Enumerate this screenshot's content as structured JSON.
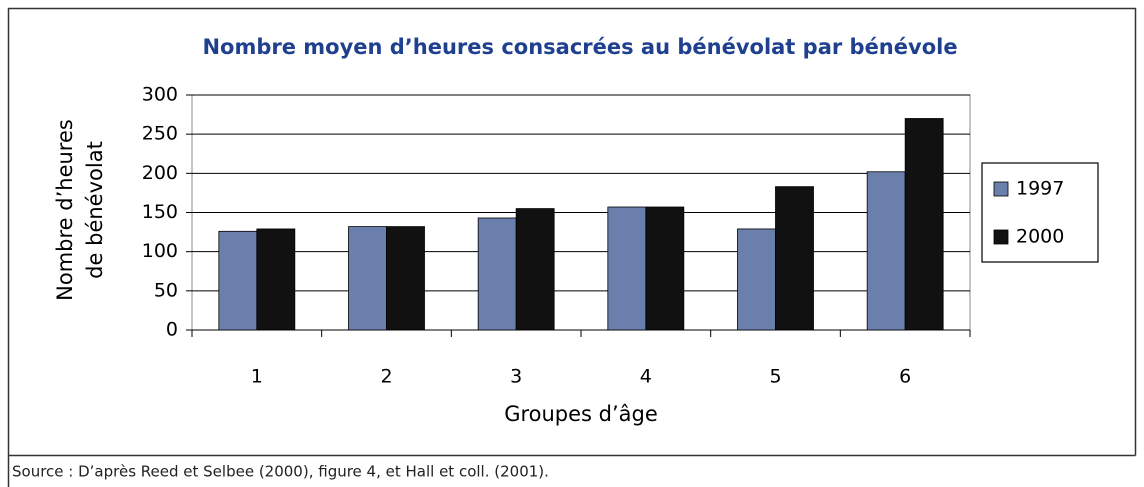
{
  "chart_data": {
    "type": "bar",
    "title": "Nombre moyen d’heures consacrées au bénévolat par bénévole",
    "ylabel": [
      "Nombre d’heures",
      "de bénévolat"
    ],
    "xlabel": "Groupes d’âge",
    "categories": [
      "1",
      "2",
      "3",
      "4",
      "5",
      "6"
    ],
    "series": [
      {
        "name": "1997",
        "color": "#6b7fad",
        "values": [
          126,
          132,
          143,
          157,
          129,
          202
        ]
      },
      {
        "name": "2000",
        "color": "#111111",
        "values": [
          129,
          132,
          155,
          157,
          183,
          270
        ]
      }
    ],
    "ylim": [
      0,
      300
    ],
    "yticks": [
      0,
      50,
      100,
      150,
      200,
      250,
      300
    ],
    "grid": true,
    "legend": "right"
  },
  "source": "Source : D’après Reed et Selbee (2000), figure 4, et Hall et coll. (2001)."
}
